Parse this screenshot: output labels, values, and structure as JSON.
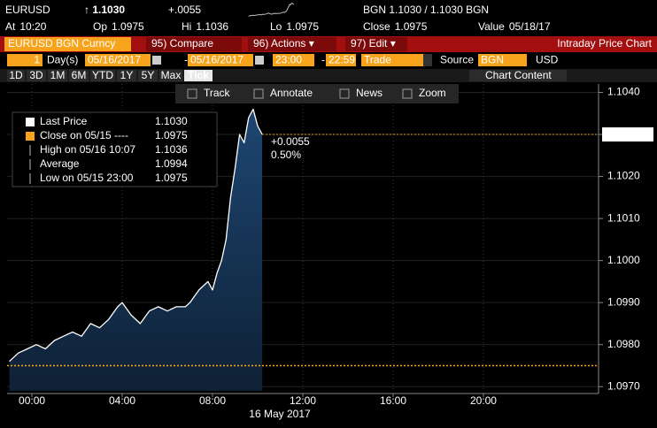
{
  "header": {
    "ticker": "EURUSD",
    "price": "↑ 1.1030",
    "change": "+.0055",
    "quote": "BGN 1.1030 / 1.1030 BGN",
    "stats": [
      {
        "label": "At",
        "value": "10:20"
      },
      {
        "label": "Op",
        "value": "1.0975"
      },
      {
        "label": "Hi",
        "value": "1.1036"
      },
      {
        "label": "Lo",
        "value": "1.0975"
      },
      {
        "label": "Close",
        "value": "1.0975"
      },
      {
        "label": "Value",
        "value": "05/18/17"
      }
    ]
  },
  "menu": {
    "security": "EURUSD BGN Curncy",
    "items": [
      "95) Compare",
      "96) Actions ▾",
      "97) Edit ▾"
    ],
    "title": "Intraday Price Chart"
  },
  "range": [
    "1",
    "Day(s)",
    "05/16/2017",
    "-",
    "05/16/2017",
    "23:00",
    "-",
    "22:59",
    "Trade",
    "Source",
    "BGN",
    "USD"
  ],
  "periods": [
    "1D",
    "3D",
    "1M",
    "6M",
    "YTD",
    "1Y",
    "5Y",
    "Max",
    "Tick"
  ],
  "chart_content": "Chart Content",
  "tools": [
    "Track",
    "Annotate",
    "News",
    "Zoom"
  ],
  "chart_data": {
    "type": "line",
    "x": [
      -1.0,
      -0.6,
      -0.2,
      0.2,
      0.6,
      1.0,
      1.4,
      1.8,
      2.2,
      2.6,
      3.0,
      3.4,
      3.8,
      4.0,
      4.4,
      4.8,
      5.2,
      5.6,
      6.0,
      6.4,
      6.8,
      7.0,
      7.4,
      7.8,
      8.0,
      8.2,
      8.4,
      8.6,
      8.8,
      9.0,
      9.2,
      9.4,
      9.6,
      9.8,
      10.0,
      10.2
    ],
    "series": [
      {
        "name": "Last Price",
        "color": "#ffffff",
        "values": [
          1.0976,
          1.0978,
          1.0979,
          1.098,
          1.0979,
          1.0981,
          1.0982,
          1.0983,
          1.0982,
          1.0985,
          1.0984,
          1.0986,
          1.0989,
          1.099,
          1.0987,
          1.0985,
          1.0988,
          1.0989,
          1.0988,
          1.0989,
          1.0989,
          1.099,
          1.0993,
          1.0995,
          1.0993,
          1.0997,
          1.1,
          1.1005,
          1.1015,
          1.1022,
          1.103,
          1.1028,
          1.1034,
          1.1036,
          1.1032,
          1.103
        ]
      }
    ],
    "last": {
      "value": 1.103,
      "label": "1.1030"
    },
    "legend_items": [
      {
        "name": "Close on 05/15 ----",
        "value": 1.0975
      },
      {
        "name": "High on 05/16 10:07",
        "value": 1.1036
      },
      {
        "name": "Average",
        "value": 1.0994
      },
      {
        "name": "Low on 05/15 23:00",
        "value": 1.0975
      }
    ],
    "change_labels": [
      "+0.0055",
      "0.50%"
    ],
    "xlabel": "16 May 2017",
    "xlim": [
      -1.1,
      25.1
    ],
    "xticks": [
      {
        "value": 0,
        "label": "00:00"
      },
      {
        "value": 4,
        "label": "04:00"
      },
      {
        "value": 8,
        "label": "08:00"
      },
      {
        "value": 12,
        "label": "12:00"
      },
      {
        "value": 16,
        "label": "16:00"
      },
      {
        "value": 20,
        "label": "20:00"
      }
    ],
    "ylim": [
      1.0969,
      1.1042
    ],
    "yticks": [
      {
        "value": 1.097,
        "label": "1.0970"
      },
      {
        "value": 1.098,
        "label": "1.0980"
      },
      {
        "value": 1.099,
        "label": "1.0990"
      },
      {
        "value": 1.1,
        "label": "1.1000"
      },
      {
        "value": 1.101,
        "label": "1.1010"
      },
      {
        "value": 1.102,
        "label": "1.1020"
      },
      {
        "value": 1.103,
        "label": "1.1030"
      },
      {
        "value": 1.104,
        "label": "1.1040"
      }
    ],
    "grid": true,
    "area_color": "#1c3d63",
    "accent_color": "#f7a31c"
  }
}
